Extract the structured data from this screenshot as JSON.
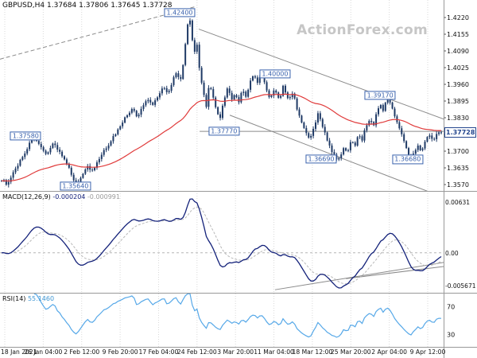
{
  "watermark": "ActionForex.com",
  "chart": {
    "title": "GBPUSD,H4",
    "ohlc": "1.37684 1.37806 1.37645 1.37728",
    "current_price_label": "1.37728"
  },
  "macd": {
    "label": "MACD(12,26,9)",
    "value_main": "-0.000204",
    "value_signal": "-0.000991",
    "axis_top": "0.00631",
    "axis_zero": "0.00",
    "axis_bottom": "-0.005671"
  },
  "rsi": {
    "label": "RSI(14)",
    "value": "55.1460",
    "axis_upper": "70",
    "axis_lower": "30"
  },
  "chart_data": {
    "type": "candlestick",
    "symbol": "GBPUSD",
    "timeframe": "H4",
    "ohlc_current": {
      "open": 1.37684,
      "high": 1.37806,
      "low": 1.37645,
      "close": 1.37728
    },
    "current_price": 1.37728,
    "price_axis_ticks": [
      1.422,
      1.4155,
      1.409,
      1.4025,
      1.396,
      1.3895,
      1.383,
      1.3765,
      1.37,
      1.3635,
      1.357
    ],
    "time_axis_labels": [
      "18 Jan 2021",
      "26 Jan 04:00",
      "2 Feb 12:00",
      "9 Feb 20:00",
      "17 Feb 04:00",
      "24 Feb 12:00",
      "3 Mar 20:00",
      "11 Mar 04:00",
      "18 Mar 12:00",
      "25 Mar 20:00",
      "2 Apr 04:00",
      "9 Apr 12:00"
    ],
    "annotations": [
      {
        "label": "1.42400",
        "t": 0.405,
        "price": 1.424
      },
      {
        "label": "1.37580",
        "t": 0.058,
        "price": 1.3758
      },
      {
        "label": "1.35640",
        "t": 0.17,
        "price": 1.3564
      },
      {
        "label": "1.37770",
        "t": 0.505,
        "price": 1.3777
      },
      {
        "label": "1.40000",
        "t": 0.62,
        "price": 1.4
      },
      {
        "label": "1.36690",
        "t": 0.724,
        "price": 1.3669
      },
      {
        "label": "1.39170",
        "t": 0.857,
        "price": 1.3917
      },
      {
        "label": "1.36680",
        "t": 0.919,
        "price": 1.3668
      }
    ],
    "trendlines": {
      "ascending_dashed": {
        "from": [
          0.0,
          1.4058
        ],
        "to": [
          0.44,
          1.4262
        ],
        "style": "dashed"
      },
      "channel_upper": {
        "from": [
          0.448,
          1.4175
        ],
        "to": [
          1.0,
          1.3825
        ]
      },
      "channel_lower": {
        "from": [
          0.518,
          1.384
        ],
        "to": [
          1.0,
          1.352
        ]
      },
      "horizontal_support": {
        "price": 1.3777,
        "from_t": 0.45,
        "to_t": 1.0
      },
      "macd_trendlines": [
        {
          "from": [
            0.62,
            0.97
          ],
          "to": [
            1.0,
            0.7
          ]
        },
        {
          "from": [
            0.78,
            0.86
          ],
          "to": [
            1.0,
            0.74
          ]
        }
      ]
    },
    "colors": {
      "candle": "#1f3a66",
      "ma": "#e03b3b",
      "macd_line": "#14227a",
      "macd_signal": "#b8b8b8",
      "rsi_line": "#56a8e8",
      "trendline": "#8a8a8a",
      "label_box": "#3a62ad",
      "grid": "#d9d9d9"
    },
    "price_path": [
      [
        0.0,
        1.359
      ],
      [
        0.014,
        1.357
      ],
      [
        0.035,
        1.3642
      ],
      [
        0.055,
        1.37
      ],
      [
        0.072,
        1.3757
      ],
      [
        0.085,
        1.3722
      ],
      [
        0.1,
        1.3686
      ],
      [
        0.118,
        1.3732
      ],
      [
        0.132,
        1.3698
      ],
      [
        0.146,
        1.3655
      ],
      [
        0.159,
        1.3612
      ],
      [
        0.17,
        1.3565
      ],
      [
        0.182,
        1.3606
      ],
      [
        0.194,
        1.3642
      ],
      [
        0.207,
        1.362
      ],
      [
        0.221,
        1.3666
      ],
      [
        0.234,
        1.3703
      ],
      [
        0.249,
        1.3742
      ],
      [
        0.262,
        1.3776
      ],
      [
        0.276,
        1.3818
      ],
      [
        0.287,
        1.3842
      ],
      [
        0.298,
        1.3868
      ],
      [
        0.308,
        1.3828
      ],
      [
        0.32,
        1.3872
      ],
      [
        0.332,
        1.3906
      ],
      [
        0.344,
        1.388
      ],
      [
        0.357,
        1.3922
      ],
      [
        0.368,
        1.395
      ],
      [
        0.378,
        1.3918
      ],
      [
        0.389,
        1.3976
      ],
      [
        0.398,
        1.4002
      ],
      [
        0.406,
        1.3966
      ],
      [
        0.415,
        1.4062
      ],
      [
        0.422,
        1.418
      ],
      [
        0.427,
        1.424
      ],
      [
        0.433,
        1.4136
      ],
      [
        0.439,
        1.4082
      ],
      [
        0.444,
        1.4118
      ],
      [
        0.452,
        1.3988
      ],
      [
        0.459,
        1.3928
      ],
      [
        0.465,
        1.3868
      ],
      [
        0.472,
        1.3964
      ],
      [
        0.48,
        1.392
      ],
      [
        0.489,
        1.3852
      ],
      [
        0.497,
        1.383
      ],
      [
        0.506,
        1.3902
      ],
      [
        0.514,
        1.3948
      ],
      [
        0.523,
        1.3898
      ],
      [
        0.531,
        1.3922
      ],
      [
        0.539,
        1.3888
      ],
      [
        0.548,
        1.394
      ],
      [
        0.557,
        1.3908
      ],
      [
        0.566,
        1.3972
      ],
      [
        0.574,
        1.4
      ],
      [
        0.583,
        1.3962
      ],
      [
        0.591,
        1.4004
      ],
      [
        0.601,
        1.3948
      ],
      [
        0.611,
        1.3902
      ],
      [
        0.621,
        1.394
      ],
      [
        0.631,
        1.3898
      ],
      [
        0.641,
        1.3954
      ],
      [
        0.652,
        1.3898
      ],
      [
        0.662,
        1.393
      ],
      [
        0.672,
        1.3866
      ],
      [
        0.682,
        1.3818
      ],
      [
        0.692,
        1.3768
      ],
      [
        0.701,
        1.3744
      ],
      [
        0.711,
        1.3792
      ],
      [
        0.72,
        1.3846
      ],
      [
        0.73,
        1.38
      ],
      [
        0.74,
        1.3748
      ],
      [
        0.75,
        1.3698
      ],
      [
        0.76,
        1.3674
      ],
      [
        0.77,
        1.3668
      ],
      [
        0.779,
        1.3722
      ],
      [
        0.786,
        1.3694
      ],
      [
        0.795,
        1.3742
      ],
      [
        0.803,
        1.3718
      ],
      [
        0.812,
        1.3772
      ],
      [
        0.82,
        1.3746
      ],
      [
        0.83,
        1.3802
      ],
      [
        0.838,
        1.3826
      ],
      [
        0.845,
        1.3794
      ],
      [
        0.853,
        1.3852
      ],
      [
        0.861,
        1.3882
      ],
      [
        0.868,
        1.3856
      ],
      [
        0.876,
        1.3916
      ],
      [
        0.883,
        1.3888
      ],
      [
        0.891,
        1.3854
      ],
      [
        0.899,
        1.3818
      ],
      [
        0.907,
        1.3784
      ],
      [
        0.915,
        1.3738
      ],
      [
        0.923,
        1.3698
      ],
      [
        0.931,
        1.3668
      ],
      [
        0.939,
        1.3696
      ],
      [
        0.947,
        1.3722
      ],
      [
        0.955,
        1.3702
      ],
      [
        0.963,
        1.3742
      ],
      [
        0.973,
        1.3762
      ],
      [
        0.983,
        1.3746
      ],
      [
        0.993,
        1.3772
      ],
      [
        1.0,
        1.37728
      ]
    ]
  }
}
